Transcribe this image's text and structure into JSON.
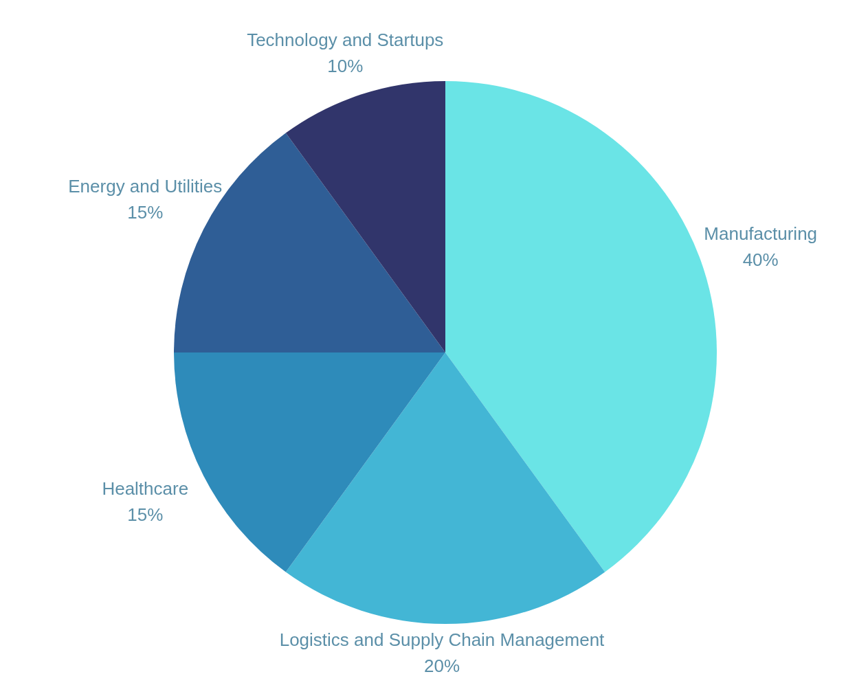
{
  "chart_data": {
    "type": "pie",
    "categories": [
      "Manufacturing",
      "Logistics and Supply Chain Management",
      "Healthcare",
      "Energy and Utilities",
      "Technology and Startups"
    ],
    "values": [
      40,
      20,
      15,
      15,
      10
    ],
    "value_labels": [
      "40%",
      "20%",
      "15%",
      "15%",
      "10%"
    ],
    "colors": [
      "#6ae4e6",
      "#43b6d5",
      "#2e8bba",
      "#2f5e96",
      "#31356b"
    ]
  }
}
